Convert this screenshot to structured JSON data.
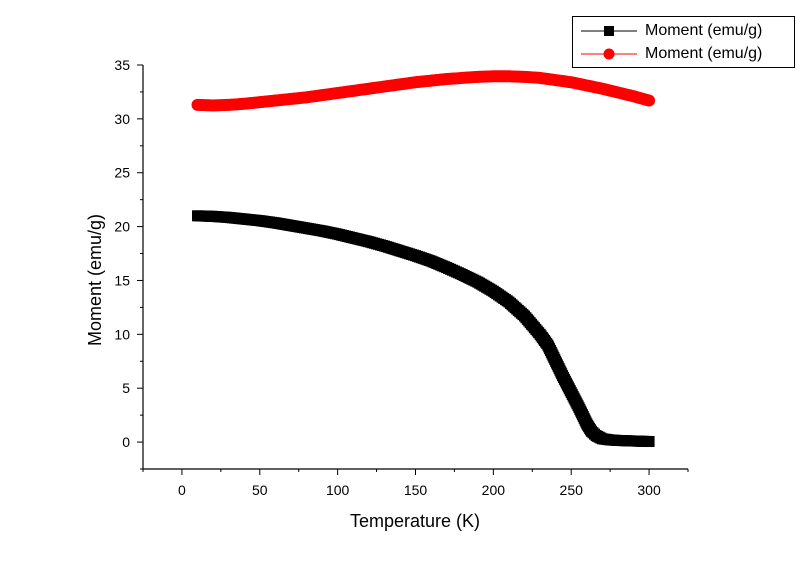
{
  "chart_data": {
    "type": "scatter",
    "xlabel": "Temperature (K)",
    "ylabel": "Moment (emu/g)",
    "xlim": [
      -25,
      325
    ],
    "ylim": [
      -2.5,
      35
    ],
    "xticks": [
      0,
      50,
      100,
      150,
      200,
      250,
      300
    ],
    "yticks": [
      0,
      5,
      10,
      15,
      20,
      25,
      30,
      35
    ],
    "grid": false,
    "legend_position": "top-right",
    "series": [
      {
        "name": "Moment (emu/g)",
        "color": "#000000",
        "marker": "square",
        "x": [
          10,
          20,
          30,
          40,
          50,
          60,
          70,
          80,
          90,
          100,
          110,
          120,
          130,
          140,
          150,
          160,
          170,
          180,
          190,
          200,
          210,
          220,
          230,
          235,
          240,
          245,
          250,
          255,
          260,
          263,
          266,
          270,
          275,
          280,
          290,
          300
        ],
        "y": [
          21.0,
          20.95,
          20.85,
          20.7,
          20.55,
          20.35,
          20.1,
          19.85,
          19.6,
          19.3,
          18.95,
          18.6,
          18.2,
          17.75,
          17.3,
          16.8,
          16.2,
          15.55,
          14.85,
          14.0,
          13.0,
          11.7,
          10.0,
          9.0,
          7.5,
          6.0,
          4.6,
          3.2,
          1.7,
          1.0,
          0.6,
          0.3,
          0.2,
          0.15,
          0.1,
          0.05
        ]
      },
      {
        "name": "Moment (emu/g)",
        "color": "#ff0000",
        "marker": "circle",
        "x": [
          10,
          20,
          30,
          40,
          50,
          60,
          70,
          80,
          90,
          100,
          110,
          120,
          130,
          140,
          150,
          160,
          170,
          180,
          190,
          200,
          210,
          220,
          230,
          240,
          250,
          260,
          270,
          280,
          290,
          300
        ],
        "y": [
          31.3,
          31.25,
          31.3,
          31.4,
          31.55,
          31.7,
          31.85,
          32.0,
          32.2,
          32.4,
          32.6,
          32.8,
          33.0,
          33.2,
          33.4,
          33.55,
          33.7,
          33.8,
          33.9,
          33.95,
          33.95,
          33.9,
          33.8,
          33.6,
          33.4,
          33.1,
          32.8,
          32.45,
          32.1,
          31.7
        ]
      }
    ]
  }
}
